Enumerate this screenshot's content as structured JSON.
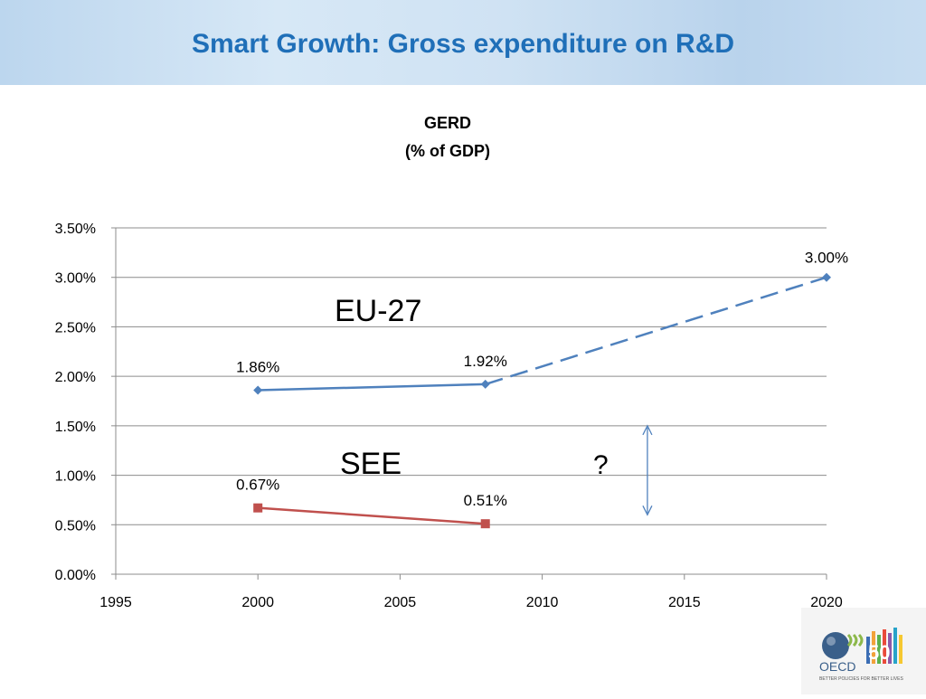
{
  "slide": {
    "title": "Smart Growth: Gross expenditure on R&D"
  },
  "chart_data": {
    "type": "line",
    "title": "GERD",
    "subtitle": "(% of GDP)",
    "xlim": [
      1995,
      2020
    ],
    "ylim": [
      0,
      0.035
    ],
    "x_ticks": [
      "1995",
      "2000",
      "2005",
      "2010",
      "2015",
      "2020"
    ],
    "y_ticks": [
      "0.00%",
      "0.50%",
      "1.00%",
      "1.50%",
      "2.00%",
      "2.50%",
      "3.00%",
      "3.50%"
    ],
    "grid": true,
    "series": [
      {
        "name": "EU-27",
        "color": "#4f81bd",
        "marker": "diamond",
        "points": [
          [
            2000,
            0.0186
          ],
          [
            2008,
            0.0192
          ]
        ],
        "labels": [
          "1.86%",
          "1.92%"
        ],
        "target": [
          2020,
          0.03
        ],
        "target_label": "3.00%",
        "target_style": "dashed"
      },
      {
        "name": "SEE",
        "color": "#c0504d",
        "marker": "square",
        "points": [
          [
            2000,
            0.0067
          ],
          [
            2008,
            0.0051
          ]
        ],
        "labels": [
          "0.67%",
          "0.51%"
        ]
      }
    ],
    "annotations": [
      {
        "text": "?"
      }
    ],
    "gap_arrow": {
      "x": 2013.7,
      "y_from": 0.015,
      "y_to": 0.006,
      "color": "#4f81bd"
    }
  },
  "logo": {
    "text": "OECD",
    "number": "50",
    "tagline": "BETTER POLICIES FOR BETTER LIVES"
  }
}
